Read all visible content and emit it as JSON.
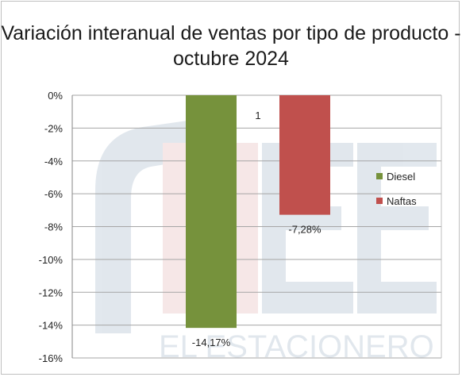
{
  "chart_data": {
    "type": "bar",
    "title": "Variación interanual  de ventas por tipo de producto - octubre 2024",
    "categories": [
      "1"
    ],
    "series": [
      {
        "name": "Diesel",
        "values": [
          -14.17
        ],
        "label": "-14,17%",
        "color": "#76923c"
      },
      {
        "name": "Naftas",
        "values": [
          -7.28
        ],
        "label": "-7,28%",
        "color": "#c0504d"
      }
    ],
    "ylim": [
      -16,
      0
    ],
    "yticks": [
      0,
      -2,
      -4,
      -6,
      -8,
      -10,
      -12,
      -14,
      -16
    ],
    "ytick_labels": [
      "0%",
      "-2%",
      "-4%",
      "-6%",
      "-8%",
      "-10%",
      "-12%",
      "-14%",
      "-16%"
    ],
    "grid": true,
    "legend": "right",
    "watermark": "EL ESTACIONERO"
  }
}
